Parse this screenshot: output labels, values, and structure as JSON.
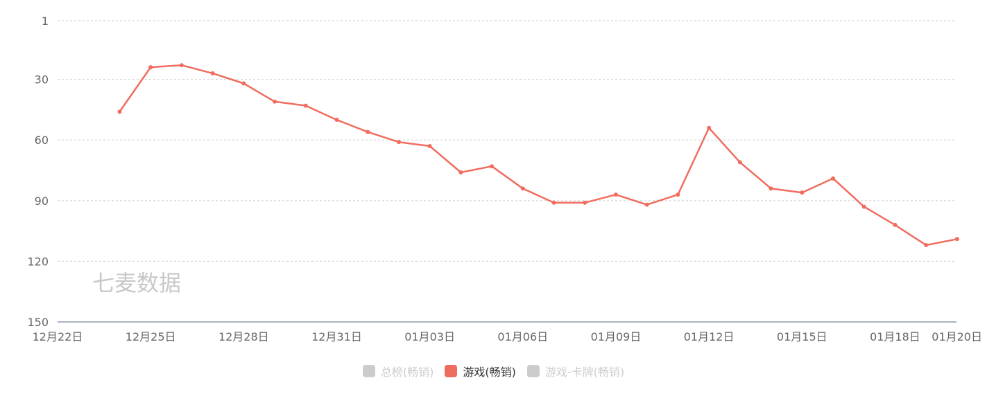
{
  "chart_data": {
    "type": "line",
    "y_inverted": true,
    "ylim": [
      1,
      150
    ],
    "y_ticks": [
      "1",
      "30",
      "60",
      "90",
      "120",
      "150"
    ],
    "y_tick_values": [
      1,
      30,
      60,
      90,
      120,
      150
    ],
    "x_range": [
      "12月22日",
      "01月20日"
    ],
    "x_tick_labels": [
      "12月22日",
      "12月25日",
      "12月28日",
      "12月31日",
      "01月03日",
      "01月06日",
      "01月09日",
      "01月12日",
      "01月15日",
      "01月18日",
      "01月20日"
    ],
    "x_tick_index": [
      0,
      3,
      6,
      9,
      12,
      15,
      18,
      21,
      24,
      27,
      29
    ],
    "grid": true,
    "legend_position": "bottom",
    "watermark": "七麦数据",
    "series": [
      {
        "name": "总榜(畅销)",
        "active": false,
        "color": "#cccccc",
        "values": []
      },
      {
        "name": "游戏(畅销)",
        "active": true,
        "color": "#f06c5f",
        "start_index": 2,
        "values": [
          46,
          24,
          23,
          27,
          32,
          41,
          43,
          50,
          56,
          61,
          63,
          76,
          73,
          84,
          91,
          91,
          87,
          92,
          87,
          54,
          71,
          84,
          86,
          79,
          93,
          102,
          112,
          109
        ]
      },
      {
        "name": "游戏-卡牌(畅销)",
        "active": false,
        "color": "#cccccc",
        "values": []
      }
    ]
  }
}
